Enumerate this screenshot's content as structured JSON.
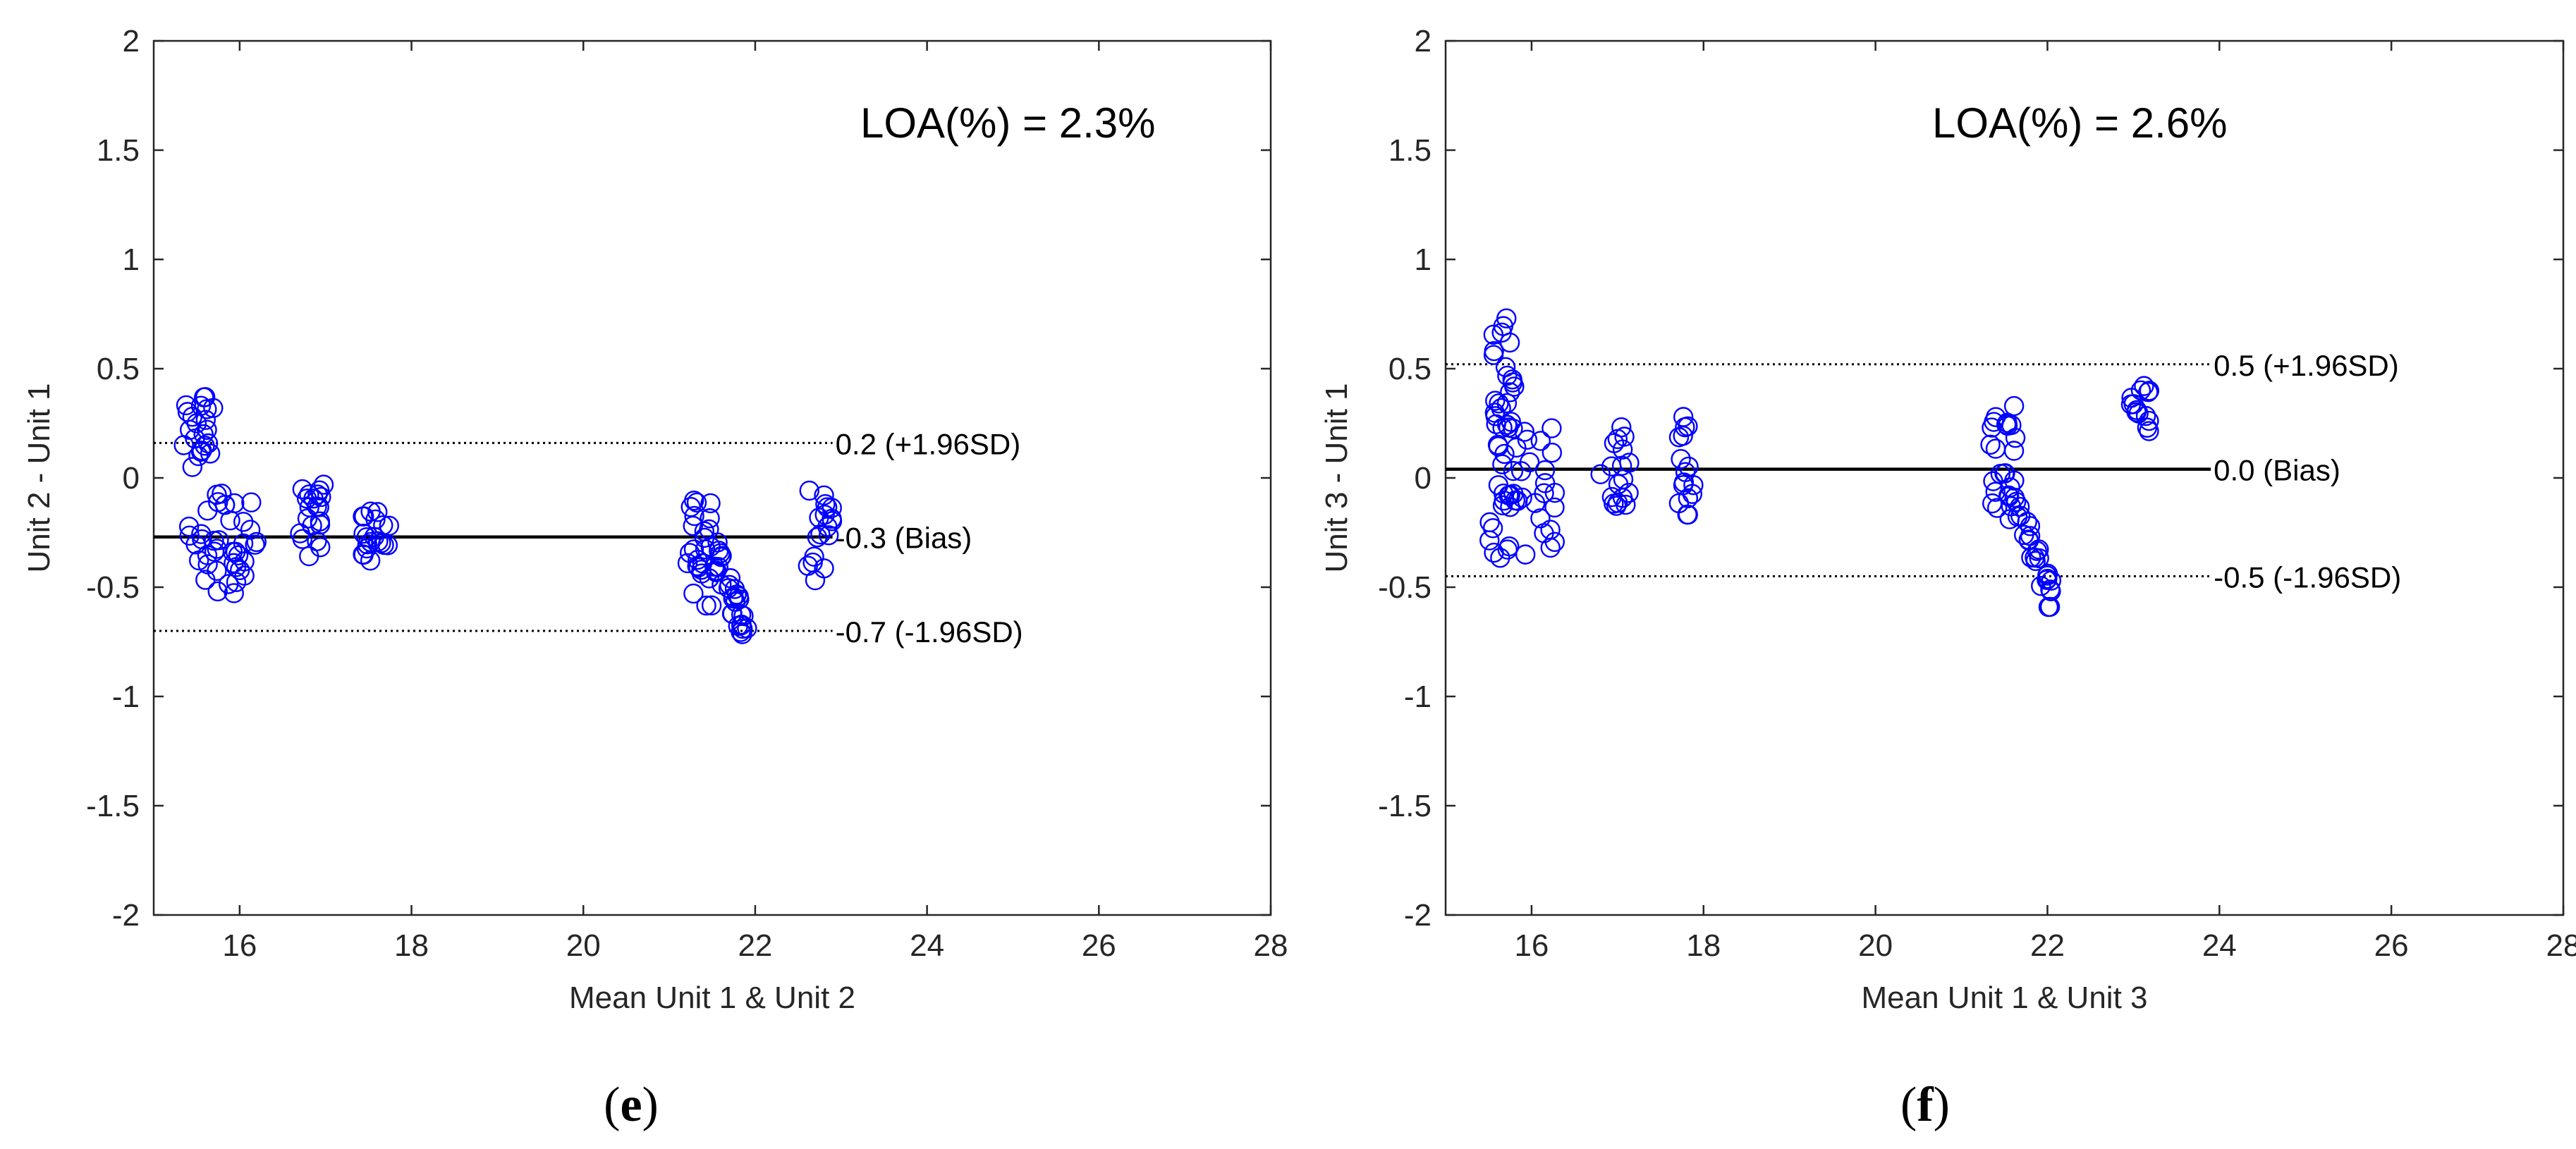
{
  "chart_data": [
    {
      "type": "scatter",
      "panel_label_open": "(",
      "panel_label_letter": "e",
      "panel_label_close": ")",
      "xlabel": "Mean Unit 1 & Unit 2",
      "ylabel": "Unit 2 - Unit 1",
      "xlim": [
        15,
        28
      ],
      "ylim": [
        -2,
        2
      ],
      "xticks": [
        16,
        18,
        20,
        22,
        24,
        26,
        28
      ],
      "yticks": [
        -2,
        -1.5,
        -1,
        -0.5,
        0,
        0.5,
        1,
        1.5,
        2
      ],
      "marker_color": "#0000ff",
      "annotation": "LOA(%) = 2.3%",
      "line_x_end": 22.9,
      "lines": [
        {
          "name": "upper",
          "y": 0.16,
          "style": "dotted",
          "label": "0.2 (+1.96SD)"
        },
        {
          "name": "bias",
          "y": -0.27,
          "style": "solid",
          "label": "-0.3 (Bias)"
        },
        {
          "name": "lower",
          "y": -0.7,
          "style": "dotted",
          "label": "-0.7 (-1.96SD)"
        }
      ],
      "clusters": [
        {
          "x": [
            15.3,
            15.75
          ],
          "count": 22,
          "points": [
            [
              15.35,
              0.15
            ],
            [
              15.42,
              0.22
            ],
            [
              15.45,
              0.28
            ],
            [
              15.5,
              0.25
            ],
            [
              15.55,
              0.33
            ],
            [
              15.6,
              0.37
            ],
            [
              15.48,
              0.18
            ],
            [
              15.58,
              0.2
            ],
            [
              15.52,
              0.1
            ],
            [
              15.45,
              0.05
            ],
            [
              15.62,
              0.22
            ],
            [
              15.55,
              0.12
            ]
          ]
        },
        {
          "x": [
            15.4,
            16.2
          ],
          "count": 40,
          "y": [
            -0.53,
            -0.05
          ]
        },
        {
          "x": [
            16.7,
            17.05
          ],
          "count": 20,
          "y": [
            -0.36,
            -0.03
          ]
        },
        {
          "x": [
            17.4,
            17.75
          ],
          "count": 20,
          "y": [
            -0.38,
            -0.15
          ]
        },
        {
          "x": [
            21.2,
            21.5
          ],
          "count": 22,
          "y": [
            -0.6,
            -0.08
          ]
        },
        {
          "x": [
            21.45,
            21.95
          ],
          "count": 34,
          "y": [
            -0.78,
            -0.25
          ]
        },
        {
          "x": [
            22.6,
            22.9
          ],
          "count": 18,
          "y": [
            -0.47,
            -0.05
          ]
        }
      ]
    },
    {
      "type": "scatter",
      "panel_label_open": "(",
      "panel_label_letter": "f",
      "panel_label_close": ")",
      "xlabel": "Mean Unit 1 & Unit 3",
      "ylabel": "Unit 3 - Unit 1",
      "xlim": [
        15,
        28
      ],
      "ylim": [
        -2,
        2
      ],
      "xticks": [
        16,
        18,
        20,
        22,
        24,
        26,
        28
      ],
      "yticks": [
        -2,
        -1.5,
        -1,
        -0.5,
        0,
        0.5,
        1,
        1.5,
        2
      ],
      "marker_color": "#0000ff",
      "annotation": "LOA(%) = 2.6%",
      "line_x_end": 23.9,
      "lines": [
        {
          "name": "upper",
          "y": 0.52,
          "style": "dotted",
          "label": "0.5 (+1.96SD)"
        },
        {
          "name": "bias",
          "y": 0.04,
          "style": "solid",
          "label": "0.0 (Bias)"
        },
        {
          "name": "lower",
          "y": -0.45,
          "style": "dotted",
          "label": "-0.5 (-1.96SD)"
        }
      ],
      "clusters": [
        {
          "x": [
            15.55,
            15.8
          ],
          "count": 24,
          "y": [
            0.2,
            0.74
          ]
        },
        {
          "x": [
            15.5,
            16.3
          ],
          "count": 44,
          "y": [
            -0.37,
            0.25
          ]
        },
        {
          "x": [
            16.8,
            17.15
          ],
          "count": 18,
          "y": [
            -0.13,
            0.26
          ]
        },
        {
          "x": [
            17.7,
            17.9
          ],
          "count": 16,
          "y": [
            -0.18,
            0.29
          ]
        },
        {
          "x": [
            21.3,
            21.65
          ],
          "count": 24,
          "y": [
            -0.2,
            0.33
          ]
        },
        {
          "x": [
            21.55,
            22.05
          ],
          "count": 28,
          "y": [
            -0.55,
            -0.05
          ]
        },
        {
          "x": [
            22.95,
            23.2
          ],
          "count": 14,
          "y": [
            0.2,
            0.46
          ]
        }
      ]
    }
  ]
}
